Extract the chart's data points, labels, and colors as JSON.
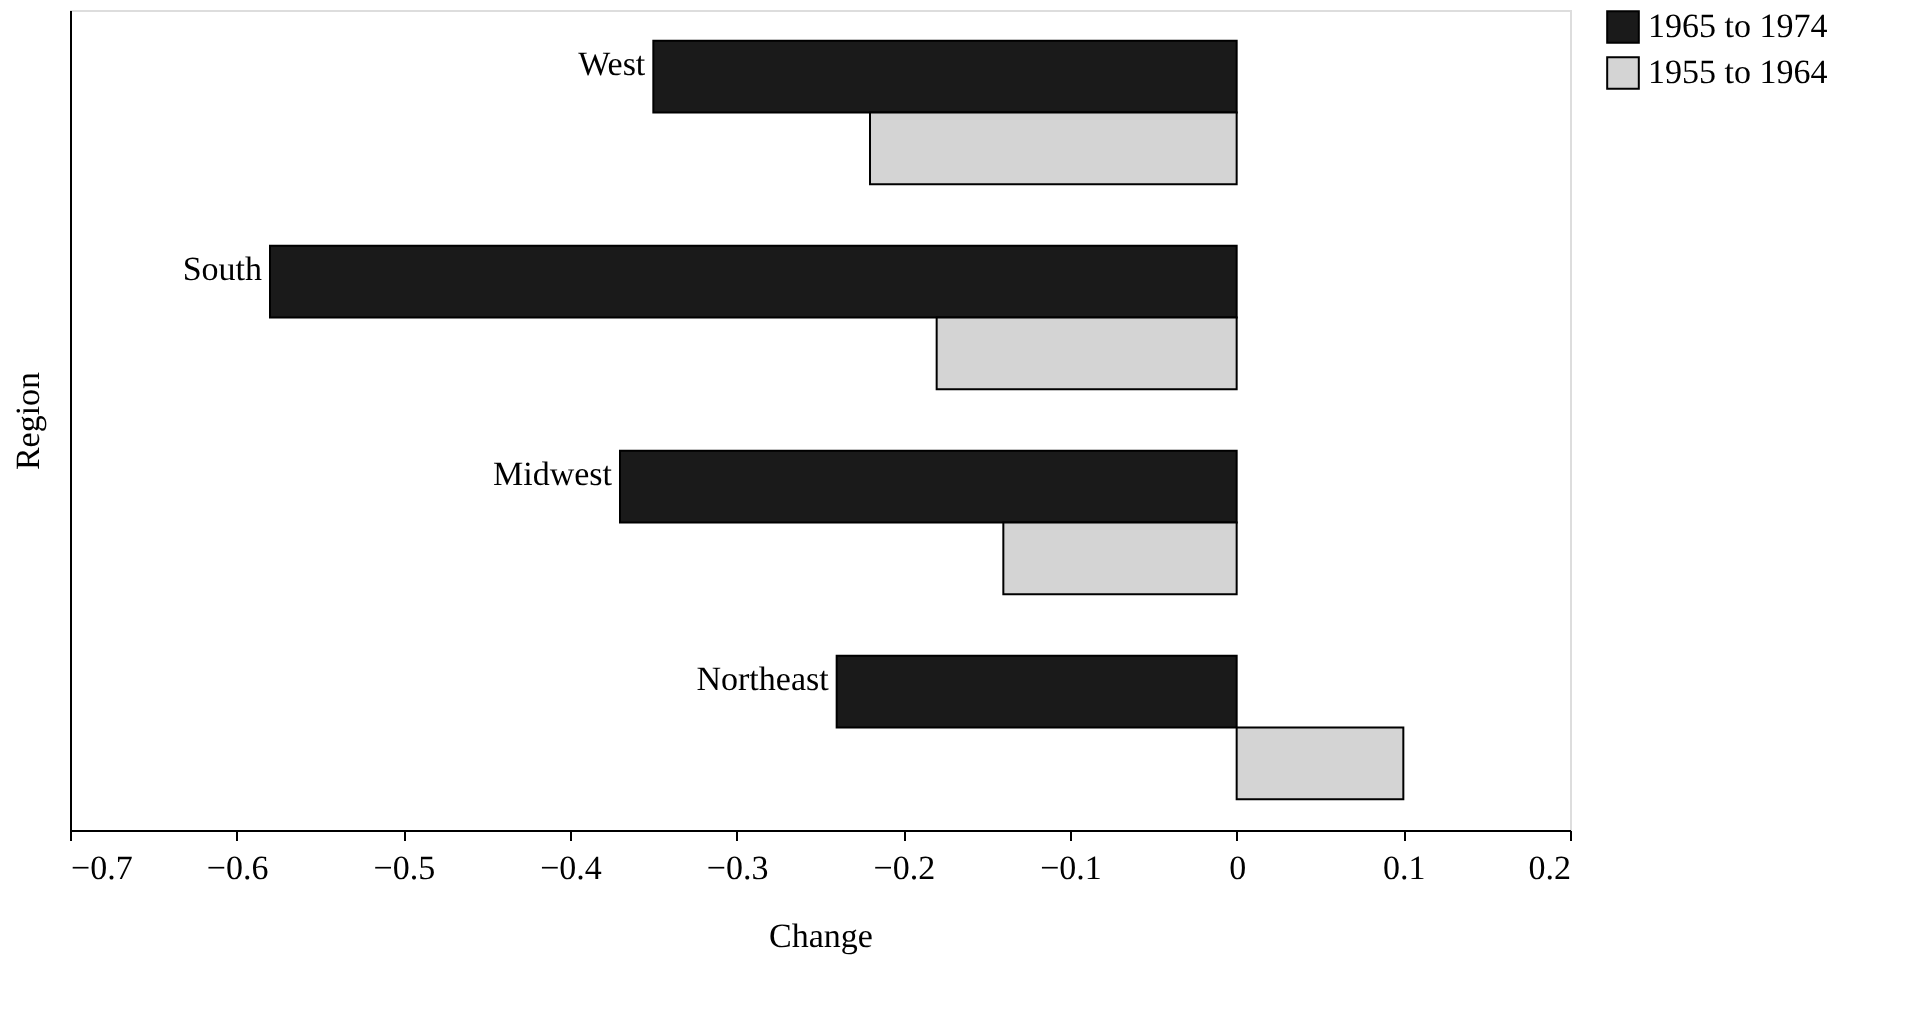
{
  "chart_data": {
    "type": "bar",
    "orientation": "horizontal",
    "xlabel": "Change",
    "ylabel": "Region",
    "categories": [
      "West",
      "South",
      "Midwest",
      "Northeast"
    ],
    "series": [
      {
        "name": "1965 to 1974",
        "color": "#1a1a1a",
        "values": [
          -0.35,
          -0.58,
          -0.37,
          -0.24
        ]
      },
      {
        "name": "1955 to 1964",
        "color": "#d4d4d4",
        "values": [
          -0.22,
          -0.18,
          -0.14,
          0.1
        ]
      }
    ],
    "xlim": [
      -0.7,
      0.2
    ],
    "xticks": [
      {
        "value": -0.7,
        "label": "−0.7"
      },
      {
        "value": -0.6,
        "label": "−0.6"
      },
      {
        "value": -0.5,
        "label": "−0.5"
      },
      {
        "value": -0.4,
        "label": "−0.4"
      },
      {
        "value": -0.3,
        "label": "−0.3"
      },
      {
        "value": -0.2,
        "label": "−0.2"
      },
      {
        "value": -0.1,
        "label": "−0.1"
      },
      0,
      0.1,
      0.2
    ],
    "grid": false,
    "legend": "right",
    "tick_labels": "x"
  }
}
